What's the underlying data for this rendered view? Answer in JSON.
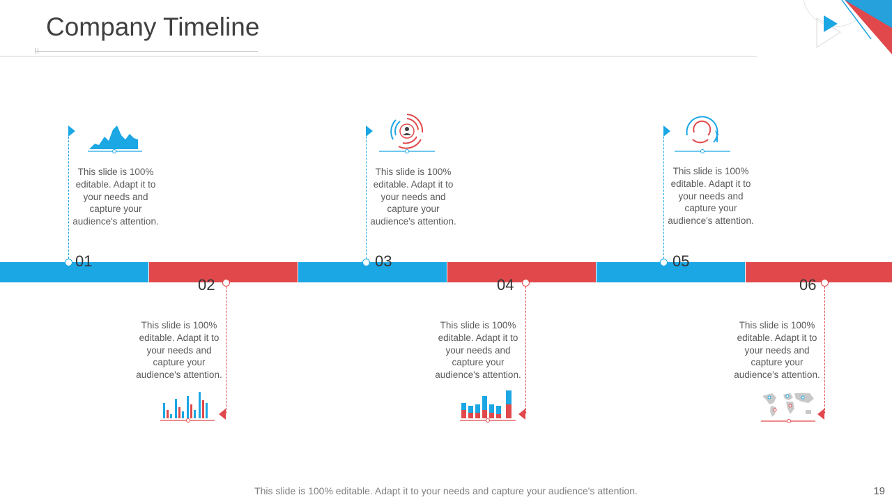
{
  "slide": {
    "title": "Company Timeline",
    "footer": "This slide is 100% editable. Adapt it to your needs and capture your audience's attention.",
    "page_number": "19"
  },
  "colors": {
    "blue": "#1ba6e4",
    "red": "#e0484b",
    "text": "#595959"
  },
  "milestones": [
    {
      "number": "01",
      "text": "This slide is 100% editable. Adapt it to your needs and capture your audience's attention.",
      "icon": "area-chart-icon",
      "color": "blue"
    },
    {
      "number": "02",
      "text": "This slide is 100% editable. Adapt it to your needs and capture your audience's attention.",
      "icon": "bar-chart-icon",
      "color": "red"
    },
    {
      "number": "03",
      "text": "This slide is 100% editable. Adapt it to your needs and capture your audience's attention.",
      "icon": "user-target-icon",
      "color": "blue"
    },
    {
      "number": "04",
      "text": "This slide is 100% editable. Adapt it to your needs and capture your audience's attention.",
      "icon": "column-chart-icon",
      "color": "red"
    },
    {
      "number": "05",
      "text": "This slide is 100% editable. Adapt it to your needs and capture your audience's attention.",
      "icon": "refresh-cycle-icon",
      "color": "blue"
    },
    {
      "number": "06",
      "text": "This slide is 100% editable. Adapt it to your needs and capture your audience's attention.",
      "icon": "world-map-icon",
      "color": "red"
    }
  ]
}
